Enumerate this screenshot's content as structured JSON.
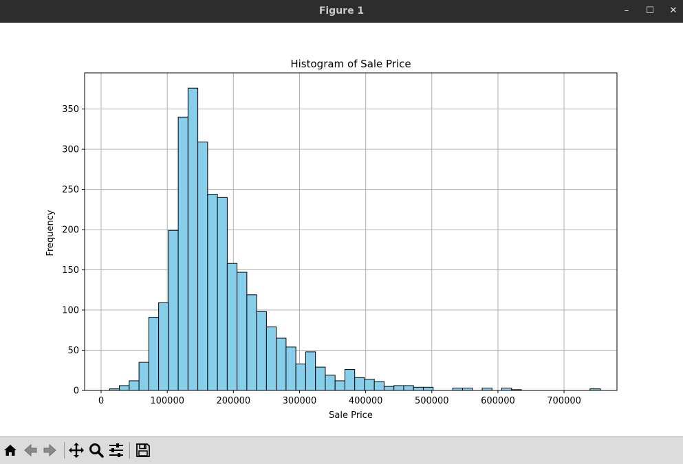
{
  "window": {
    "title": "Figure 1"
  },
  "window_controls": {
    "minimize": "–",
    "maximize": "☐",
    "close": "✕"
  },
  "toolbar": {
    "buttons": [
      {
        "name": "home-button",
        "icon": "home-icon"
      },
      {
        "name": "back-button",
        "icon": "back-arrow-icon"
      },
      {
        "name": "forward-button",
        "icon": "forward-arrow-icon"
      },
      {
        "name": "pan-button",
        "icon": "pan-move-icon"
      },
      {
        "name": "zoom-button",
        "icon": "zoom-magnifier-icon"
      },
      {
        "name": "configure-subplots-button",
        "icon": "sliders-icon"
      },
      {
        "name": "save-button",
        "icon": "save-disk-icon"
      }
    ]
  },
  "colors": {
    "bar_fill": "#87ceeb",
    "bar_edge": "#000000",
    "grid": "#b0b0b0",
    "titlebar": "#2d2d2d",
    "toolbar": "#dcdcdc"
  },
  "chart_data": {
    "type": "bar",
    "title": "Histogram of Sale Price",
    "xlabel": "Sale Price",
    "ylabel": "Frequency",
    "xlim": [
      -25000,
      780000
    ],
    "ylim": [
      0,
      395
    ],
    "grid": true,
    "xticks": [
      0,
      100000,
      200000,
      300000,
      400000,
      500000,
      600000,
      700000
    ],
    "xtick_labels": [
      "0",
      "100000",
      "200000",
      "300000",
      "400000",
      "500000",
      "600000",
      "700000"
    ],
    "yticks": [
      0,
      50,
      100,
      150,
      200,
      250,
      300,
      350
    ],
    "ytick_labels": [
      "0",
      "50",
      "100",
      "150",
      "200",
      "250",
      "300",
      "350"
    ],
    "bin_edges": [
      12789,
      27614,
      42439,
      57264,
      72089,
      86914,
      101739,
      116564,
      131389,
      146214,
      161039,
      175864,
      190689,
      205514,
      220339,
      235164,
      249989,
      264814,
      279639,
      294464,
      309289,
      324114,
      338939,
      353764,
      368589,
      383414,
      398239,
      413064,
      427889,
      442714,
      457539,
      472364,
      487189,
      502014,
      516839,
      531664,
      546489,
      561314,
      576139,
      590964,
      605789,
      620614,
      635439,
      650264,
      665089,
      679914,
      694739,
      709564,
      724389,
      739214,
      755000
    ],
    "counts": [
      2,
      6,
      12,
      35,
      91,
      109,
      199,
      340,
      376,
      309,
      244,
      240,
      158,
      147,
      119,
      98,
      79,
      65,
      54,
      33,
      48,
      29,
      19,
      12,
      26,
      16,
      14,
      11,
      5,
      6,
      6,
      4,
      4,
      0,
      0,
      3,
      3,
      0,
      3,
      0,
      3,
      1,
      0,
      0,
      0,
      0,
      0,
      0,
      0,
      2
    ]
  }
}
